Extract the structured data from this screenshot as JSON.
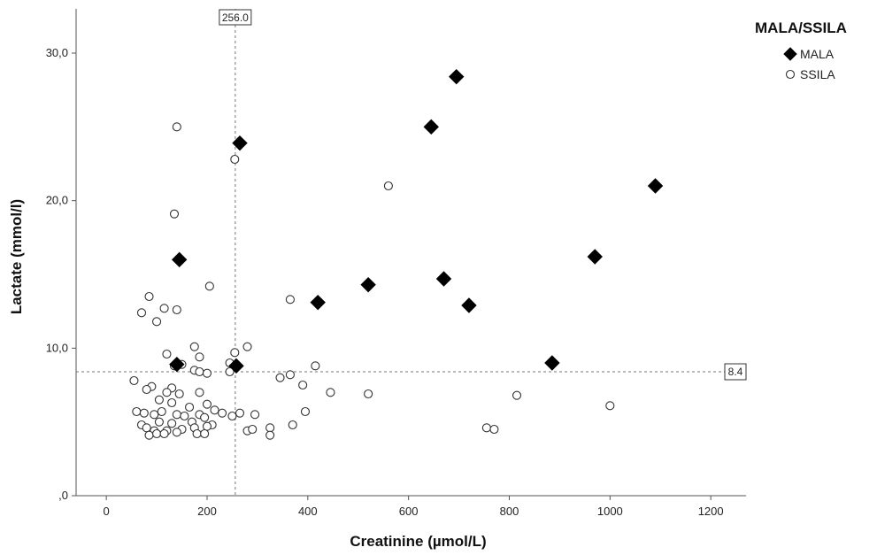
{
  "chart_data": {
    "type": "scatter",
    "title": "",
    "xlabel": "Creatinine (µmol/L)",
    "ylabel": "Lactate (mmol/l)",
    "xlim": [
      -60,
      1270
    ],
    "ylim": [
      0,
      33
    ],
    "x_ticks": [
      0,
      200,
      400,
      600,
      800,
      1000,
      1200
    ],
    "x_tick_labels": [
      "0",
      "200",
      "400",
      "600",
      "800",
      "1000",
      "1200"
    ],
    "y_ticks": [
      0,
      10,
      20,
      30
    ],
    "y_tick_labels": [
      ",0",
      "10,0",
      "20,0",
      "30,0"
    ],
    "grid": false,
    "legend": {
      "title": "MALA/SSILA",
      "placement": "top-right",
      "entries": [
        "MALA",
        "SSILA"
      ]
    },
    "reference_lines": [
      {
        "axis": "x",
        "value": 256.0,
        "label": "256.0"
      },
      {
        "axis": "y",
        "value": 8.4,
        "label": "8.4"
      }
    ],
    "series": [
      {
        "name": "MALA",
        "marker": "diamond-filled",
        "color": "#000000",
        "points": [
          [
            140,
            8.9
          ],
          [
            145,
            16.0
          ],
          [
            258,
            8.8
          ],
          [
            265,
            23.9
          ],
          [
            420,
            13.1
          ],
          [
            520,
            14.3
          ],
          [
            645,
            25.0
          ],
          [
            670,
            14.7
          ],
          [
            695,
            28.4
          ],
          [
            720,
            12.9
          ],
          [
            885,
            9.0
          ],
          [
            970,
            16.2
          ],
          [
            1090,
            21.0
          ]
        ]
      },
      {
        "name": "SSILA",
        "marker": "circle-open",
        "color": "#333333",
        "points": [
          [
            140,
            25.0
          ],
          [
            255,
            22.8
          ],
          [
            135,
            19.1
          ],
          [
            560,
            21.0
          ],
          [
            205,
            14.2
          ],
          [
            365,
            13.3
          ],
          [
            85,
            13.5
          ],
          [
            70,
            12.4
          ],
          [
            115,
            12.7
          ],
          [
            140,
            12.6
          ],
          [
            100,
            11.8
          ],
          [
            175,
            10.1
          ],
          [
            280,
            10.1
          ],
          [
            120,
            9.6
          ],
          [
            185,
            9.4
          ],
          [
            255,
            9.7
          ],
          [
            245,
            9.0
          ],
          [
            415,
            8.8
          ],
          [
            135,
            8.8
          ],
          [
            150,
            8.9
          ],
          [
            175,
            8.5
          ],
          [
            185,
            8.4
          ],
          [
            200,
            8.3
          ],
          [
            245,
            8.4
          ],
          [
            345,
            8.0
          ],
          [
            365,
            8.2
          ],
          [
            55,
            7.8
          ],
          [
            90,
            7.4
          ],
          [
            80,
            7.2
          ],
          [
            130,
            7.3
          ],
          [
            120,
            7.0
          ],
          [
            145,
            6.9
          ],
          [
            185,
            7.0
          ],
          [
            390,
            7.5
          ],
          [
            445,
            7.0
          ],
          [
            520,
            6.9
          ],
          [
            815,
            6.8
          ],
          [
            1000,
            6.1
          ],
          [
            105,
            6.5
          ],
          [
            130,
            6.3
          ],
          [
            165,
            6.0
          ],
          [
            200,
            6.2
          ],
          [
            215,
            5.8
          ],
          [
            230,
            5.6
          ],
          [
            60,
            5.7
          ],
          [
            75,
            5.6
          ],
          [
            95,
            5.5
          ],
          [
            110,
            5.7
          ],
          [
            140,
            5.5
          ],
          [
            155,
            5.4
          ],
          [
            185,
            5.5
          ],
          [
            195,
            5.3
          ],
          [
            250,
            5.4
          ],
          [
            265,
            5.6
          ],
          [
            295,
            5.5
          ],
          [
            395,
            5.7
          ],
          [
            105,
            5.0
          ],
          [
            130,
            4.9
          ],
          [
            170,
            5.0
          ],
          [
            210,
            4.8
          ],
          [
            70,
            4.8
          ],
          [
            80,
            4.6
          ],
          [
            95,
            4.4
          ],
          [
            120,
            4.4
          ],
          [
            150,
            4.5
          ],
          [
            175,
            4.6
          ],
          [
            200,
            4.7
          ],
          [
            280,
            4.4
          ],
          [
            290,
            4.5
          ],
          [
            325,
            4.6
          ],
          [
            370,
            4.8
          ],
          [
            755,
            4.6
          ],
          [
            770,
            4.5
          ],
          [
            85,
            4.1
          ],
          [
            100,
            4.2
          ],
          [
            115,
            4.2
          ],
          [
            140,
            4.3
          ],
          [
            180,
            4.2
          ],
          [
            195,
            4.2
          ],
          [
            325,
            4.1
          ]
        ]
      }
    ]
  }
}
